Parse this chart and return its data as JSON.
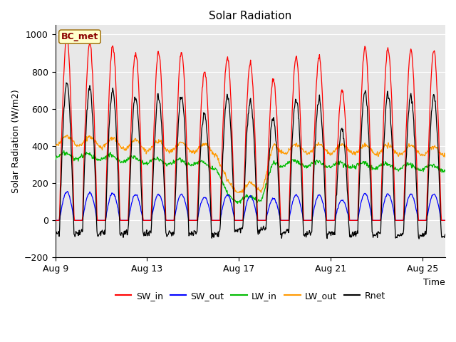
{
  "title": "Solar Radiation",
  "xlabel": "Time",
  "ylabel": "Solar Radiation (W/m2)",
  "ylim": [
    -200,
    1050
  ],
  "yticks": [
    -200,
    0,
    200,
    400,
    600,
    800,
    1000
  ],
  "xlim_days": [
    0,
    17
  ],
  "xtick_positions": [
    0,
    4,
    8,
    12,
    16
  ],
  "xtick_labels": [
    "Aug 9",
    "Aug 13",
    "Aug 17",
    "Aug 21",
    "Aug 25"
  ],
  "station_label": "BC_met",
  "colors": {
    "SW_in": "#ff0000",
    "SW_out": "#0000ff",
    "LW_in": "#00bb00",
    "LW_out": "#ff9900",
    "Rnet": "#000000"
  },
  "bg_color": "#e8e8e8",
  "fig_bg": "#ffffff",
  "title_fontsize": 11,
  "label_fontsize": 9,
  "tick_fontsize": 9
}
